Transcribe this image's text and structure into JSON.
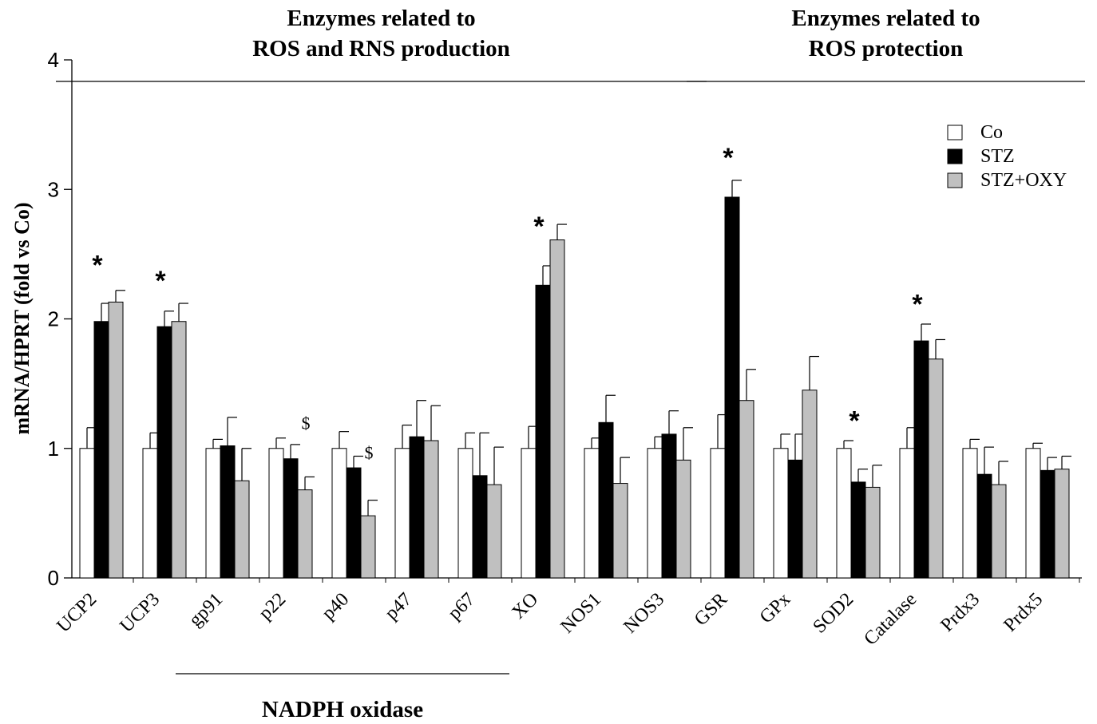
{
  "chart_data": {
    "type": "bar",
    "ylabel": "mRNA/HPRT (fold vs Co)",
    "ylim": [
      0,
      4
    ],
    "yticks": [
      "0",
      "1",
      "2",
      "3",
      "4"
    ],
    "categories": [
      "UCP2",
      "UCP3",
      "gp91",
      "p22",
      "p40",
      "p47",
      "p67",
      "XO",
      "NOS1",
      "NOS3",
      "GSR",
      "GPx",
      "SOD2",
      "Catalase",
      "Prdx3",
      "Prdx5"
    ],
    "series": [
      {
        "name": "Co",
        "color": "#ffffff",
        "values": [
          1.0,
          1.0,
          1.0,
          1.0,
          1.0,
          1.0,
          1.0,
          1.0,
          1.0,
          1.0,
          1.0,
          1.0,
          1.0,
          1.0,
          1.0,
          1.0
        ],
        "errors": [
          0.16,
          0.12,
          0.07,
          0.08,
          0.13,
          0.18,
          0.12,
          0.17,
          0.08,
          0.09,
          0.26,
          0.11,
          0.06,
          0.16,
          0.07,
          0.04
        ]
      },
      {
        "name": "STZ",
        "color": "#000000",
        "values": [
          1.98,
          1.94,
          1.02,
          0.92,
          0.85,
          1.09,
          0.79,
          2.26,
          1.2,
          1.11,
          2.94,
          0.91,
          0.74,
          1.83,
          0.8,
          0.83
        ],
        "errors": [
          0.14,
          0.12,
          0.22,
          0.11,
          0.09,
          0.28,
          0.33,
          0.15,
          0.21,
          0.18,
          0.13,
          0.2,
          0.1,
          0.13,
          0.21,
          0.1
        ]
      },
      {
        "name": "STZ+OXY",
        "color": "#c0c0c0",
        "values": [
          2.13,
          1.98,
          0.75,
          0.68,
          0.48,
          1.06,
          0.72,
          2.61,
          0.73,
          0.91,
          1.37,
          1.45,
          0.7,
          1.69,
          0.72,
          0.84
        ],
        "errors": [
          0.09,
          0.14,
          0.25,
          0.1,
          0.12,
          0.27,
          0.29,
          0.12,
          0.2,
          0.25,
          0.24,
          0.26,
          0.17,
          0.15,
          0.18,
          0.1
        ]
      }
    ],
    "annotations": [
      {
        "category": "UCP2",
        "text": "*",
        "value": 2.48
      },
      {
        "category": "UCP3",
        "text": "*",
        "value": 2.36
      },
      {
        "category": "p22",
        "text": "$",
        "value": 1.2
      },
      {
        "category": "p40",
        "text": "$",
        "value": 0.97
      },
      {
        "category": "XO",
        "text": "*",
        "value": 2.78
      },
      {
        "category": "GSR",
        "text": "*",
        "value": 3.31
      },
      {
        "category": "SOD2",
        "text": "*",
        "value": 1.28
      },
      {
        "category": "Catalase",
        "text": "*",
        "value": 2.18
      }
    ],
    "groups": [
      {
        "label_lines": [
          "Enzymes related to",
          "ROS and RNS production"
        ],
        "from": "UCP2",
        "to": "NOS3",
        "position": "top"
      },
      {
        "label_lines": [
          "Enzymes related to",
          "ROS protection"
        ],
        "from": "GSR",
        "to": "Prdx5",
        "position": "top"
      },
      {
        "label_lines": [
          "NADPH oxidase"
        ],
        "from": "gp91",
        "to": "p67",
        "position": "bottom"
      }
    ],
    "legend_position": "top-right",
    "grid": false
  }
}
